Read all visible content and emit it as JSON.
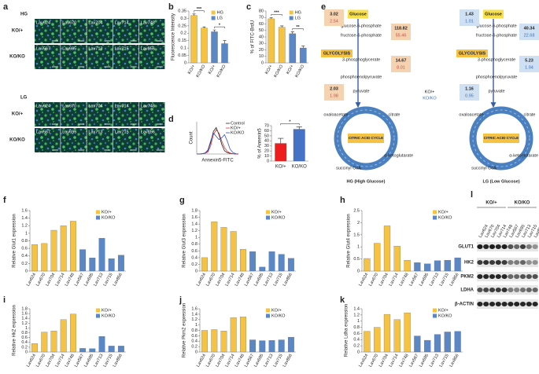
{
  "chart_data": [
    {
      "type": "bar",
      "label": "b",
      "ylabel": "Fluorescence Intensity",
      "categories": [
        "KO/+",
        "KO/KO",
        "KO/+",
        "KO/KO"
      ],
      "series": [
        {
          "name": "HG",
          "color": "#f5c242",
          "values": [
            0.32,
            0.235,
            null,
            null
          ],
          "errors": [
            0.01,
            0.008,
            null,
            null
          ]
        },
        {
          "name": "LG",
          "color": "#5b87c5",
          "values": [
            null,
            null,
            0.21,
            0.13
          ],
          "errors": [
            null,
            null,
            0.012,
            0.02
          ]
        }
      ],
      "annotations": [
        "***",
        "*"
      ],
      "ylim": [
        0,
        0.35
      ],
      "yticks": [
        0,
        0.05,
        0.1,
        0.15,
        0.2,
        0.25,
        0.3,
        0.35
      ],
      "legend": "upper right"
    },
    {
      "type": "bar",
      "label": "c",
      "ylabel": "% of FITC-BrdU",
      "categories": [
        "KO/+",
        "KO/KO",
        "KO/+",
        "KO/KO"
      ],
      "series": [
        {
          "name": "HG",
          "color": "#f5c242",
          "values": [
            68,
            55,
            null,
            null
          ],
          "errors": [
            2,
            2,
            null,
            null
          ]
        },
        {
          "name": "LG",
          "color": "#5b87c5",
          "values": [
            null,
            null,
            45,
            23
          ],
          "errors": [
            null,
            null,
            3,
            3
          ]
        }
      ],
      "annotations": [
        "***",
        "**"
      ],
      "ylim": [
        0,
        80
      ],
      "yticks": [
        0,
        10,
        20,
        30,
        40,
        50,
        60,
        70,
        80
      ],
      "legend": "upper right"
    },
    {
      "type": "line",
      "label": "d",
      "ylabel": "Count",
      "xlabel": "Annexin5-FITC",
      "categories": [
        null,
        null,
        null,
        null,
        null,
        null,
        null,
        null,
        null,
        null,
        null,
        null,
        null,
        null,
        null,
        null
      ],
      "series": [
        {
          "name": "Control",
          "color": "#222222",
          "values": [
            0,
            0,
            1,
            3,
            10,
            35,
            70,
            82,
            60,
            30,
            10,
            4,
            2,
            1,
            0,
            0
          ]
        },
        {
          "name": "KO/+",
          "color": "#e03030",
          "values": [
            0,
            0,
            1,
            2,
            6,
            25,
            60,
            75,
            65,
            40,
            20,
            8,
            3,
            1,
            0,
            0
          ]
        },
        {
          "name": "KO/KO",
          "color": "#3050c0",
          "values": [
            0,
            0,
            1,
            3,
            12,
            40,
            65,
            55,
            45,
            50,
            60,
            40,
            15,
            5,
            1,
            0
          ]
        }
      ],
      "ylim": [
        0,
        100
      ],
      "legend": "upper right"
    },
    {
      "type": "bar",
      "ylabel": "% of Annexin5",
      "categories": [
        "KO/+",
        "KO/KO"
      ],
      "values": [
        35,
        63
      ],
      "errors": [
        10,
        5
      ],
      "colors": [
        "#ee1c1c",
        "#4472c4"
      ],
      "annotations": [
        "*"
      ],
      "ylim": [
        0,
        70
      ],
      "yticks": [
        0,
        10,
        20,
        30,
        40,
        50,
        60,
        70
      ]
    },
    {
      "type": "bar",
      "label": "f",
      "ylabel": "Relative Glut1 expression",
      "categories": [
        "Lav624",
        "Lav670",
        "Lav704",
        "Lav714",
        "Lav748",
        "Lav567",
        "Lav695",
        "Lav713",
        "Lav715",
        "Lav856"
      ],
      "series": [
        {
          "name": "KO/+",
          "color": "#f5c242",
          "values": [
            0.7,
            0.73,
            1.08,
            1.2,
            1.32,
            null,
            null,
            null,
            null,
            null
          ]
        },
        {
          "name": "KO/KO",
          "color": "#5b87c5",
          "values": [
            null,
            null,
            null,
            null,
            null,
            0.57,
            0.35,
            0.87,
            0.33,
            0.42
          ]
        }
      ],
      "ylim": [
        0,
        1.6
      ],
      "yticks": [
        0,
        0.2,
        0.4,
        0.6,
        0.8,
        1,
        1.2,
        1.4,
        1.6
      ],
      "legend": "upper right"
    },
    {
      "type": "bar",
      "label": "g",
      "ylabel": "Relative Glut3 expression",
      "categories": [
        "Lav624",
        "Lav670",
        "Lav704",
        "Lav714",
        "Lav748",
        "Lav567",
        "Lav695",
        "Lav713",
        "Lav715",
        "Lav856"
      ],
      "series": [
        {
          "name": "KO/+",
          "color": "#f5c242",
          "values": [
            0.4,
            1.47,
            1.3,
            1.18,
            0.65,
            null,
            null,
            null,
            null,
            null
          ]
        },
        {
          "name": "KO/KO",
          "color": "#5b87c5",
          "values": [
            null,
            null,
            null,
            null,
            null,
            0.58,
            0.12,
            0.58,
            0.5,
            0.38
          ]
        }
      ],
      "ylim": [
        0,
        1.8
      ],
      "yticks": [
        0,
        0.2,
        0.4,
        0.6,
        0.8,
        1,
        1.2,
        1.4,
        1.6,
        1.8
      ],
      "legend": "upper right"
    },
    {
      "type": "bar",
      "label": "h",
      "ylabel": "Relative Glut4 expression",
      "categories": [
        "Lav624",
        "Lav670",
        "Lav704",
        "Lav714",
        "Lav748",
        "Lav567",
        "Lav695",
        "Lav713",
        "Lav715",
        "Lav856"
      ],
      "series": [
        {
          "name": "KO/+",
          "color": "#f5c242",
          "values": [
            0.52,
            1.15,
            1.87,
            1.03,
            0.45,
            null,
            null,
            null,
            null,
            null
          ]
        },
        {
          "name": "KO/KO",
          "color": "#5b87c5",
          "values": [
            null,
            null,
            null,
            null,
            null,
            0.35,
            0.3,
            0.43,
            0.45,
            0.55
          ]
        }
      ],
      "ylim": [
        0,
        2.5
      ],
      "yticks": [
        0,
        0.5,
        1,
        1.5,
        2,
        2.5
      ],
      "legend": "upper right"
    },
    {
      "type": "bar",
      "label": "i",
      "ylabel": "Relative Hk2 expression",
      "categories": [
        "Lav624",
        "Lav670",
        "Lav704",
        "Lav714",
        "Lav748",
        "Lav567",
        "Lav695",
        "Lav713",
        "Lav715",
        "Lav856"
      ],
      "series": [
        {
          "name": "KO/+",
          "color": "#f5c242",
          "values": [
            0.35,
            0.83,
            0.88,
            1.35,
            1.58,
            null,
            null,
            null,
            null,
            null
          ]
        },
        {
          "name": "KO/KO",
          "color": "#5b87c5",
          "values": [
            null,
            null,
            null,
            null,
            null,
            0.15,
            0.14,
            0.65,
            0.25,
            0.25
          ]
        }
      ],
      "ylim": [
        0,
        1.8
      ],
      "yticks": [
        0,
        0.2,
        0.4,
        0.6,
        0.8,
        1,
        1.2,
        1.4,
        1.6,
        1.8
      ],
      "legend": "upper right"
    },
    {
      "type": "bar",
      "label": "j",
      "ylabel": "Relative Pkm2 expression",
      "categories": [
        "Lav624",
        "Lav670",
        "Lav704",
        "Lav714",
        "Lav748",
        "Lav567",
        "Lav695",
        "Lav713",
        "Lav715",
        "Lav856"
      ],
      "series": [
        {
          "name": "KO/+",
          "color": "#f5c242",
          "values": [
            0.8,
            0.83,
            0.78,
            1.27,
            1.3,
            null,
            null,
            null,
            null,
            null
          ]
        },
        {
          "name": "KO/KO",
          "color": "#5b87c5",
          "values": [
            null,
            null,
            null,
            null,
            null,
            0.45,
            0.42,
            0.43,
            0.45,
            0.55
          ]
        }
      ],
      "ylim": [
        0,
        1.6
      ],
      "yticks": [
        0,
        0.2,
        0.4,
        0.6,
        0.8,
        1,
        1.2,
        1.4,
        1.6
      ],
      "legend": "upper right"
    },
    {
      "type": "bar",
      "label": "k",
      "ylabel": "Relative Ldha expression",
      "categories": [
        "Lav624",
        "Lav670",
        "Lav704",
        "Lav714",
        "Lav748",
        "Lav567",
        "Lav695",
        "Lav713",
        "Lav715",
        "Lav856"
      ],
      "series": [
        {
          "name": "KO/+",
          "color": "#f5c242",
          "values": [
            0.67,
            0.8,
            1.22,
            1.05,
            1.27,
            null,
            null,
            null,
            null,
            null
          ]
        },
        {
          "name": "KO/KO",
          "color": "#5b87c5",
          "values": [
            null,
            null,
            null,
            null,
            null,
            0.52,
            0.38,
            0.57,
            0.65,
            0.67
          ]
        }
      ],
      "ylim": [
        0,
        1.4
      ],
      "yticks": [
        0,
        0.2,
        0.4,
        0.6,
        0.8,
        1,
        1.2,
        1.4
      ],
      "legend": "upper right"
    }
  ],
  "micrographs": {
    "label": "a",
    "conditions": [
      "HG",
      "LG"
    ],
    "genotypes": [
      "KO/+",
      "KO/KO"
    ],
    "lines": [
      [
        "Lav624",
        "Lav670",
        "Lav704",
        "Lav714",
        "Lav748"
      ],
      [
        "Lav567",
        "Lav695",
        "Lav713",
        "Lav715",
        "Lav856"
      ]
    ]
  },
  "pathway": {
    "label": "e",
    "metabolites": [
      "Glucose",
      "glucose-6-phosphate",
      "fructose-6-phosphate",
      "3-phosphoglycerate",
      "phosphoenolpyruvate",
      "pyruvate",
      "oxaloacetate",
      "citrate",
      "succinyl CoA",
      "α-ketoglutarate"
    ],
    "glycolysis": "GLYCOLYSIS",
    "cycle": "CITRIC ACID CYCLE",
    "legend": [
      "KO/+",
      "KO/KO"
    ],
    "conditions": [
      {
        "caption": "HG (High Glucose)",
        "levels": [
          [
            3.02,
            2.54
          ],
          [
            118.82,
            55.46
          ],
          [
            14.67,
            8.01
          ],
          [
            2.03,
            1.98
          ]
        ]
      },
      {
        "caption": "LG (Low Glucose)",
        "levels": [
          [
            1.43,
            1.01
          ],
          [
            40.34,
            22.68
          ],
          [
            5.23,
            1.94
          ],
          [
            1.16,
            0.95
          ]
        ]
      }
    ]
  },
  "western_blot": {
    "label": "l",
    "groups": [
      "KO/+",
      "KO/KO"
    ],
    "lanes": [
      "Lav624",
      "Lav670",
      "Lav704",
      "Lav714",
      "Lav748",
      "Lav567",
      "Lav695",
      "Lav713",
      "Lav715",
      "Lav856"
    ],
    "proteins": [
      "GLUT1",
      "HK2",
      "PKM2",
      "LDHA",
      "β-ACTIN"
    ]
  }
}
